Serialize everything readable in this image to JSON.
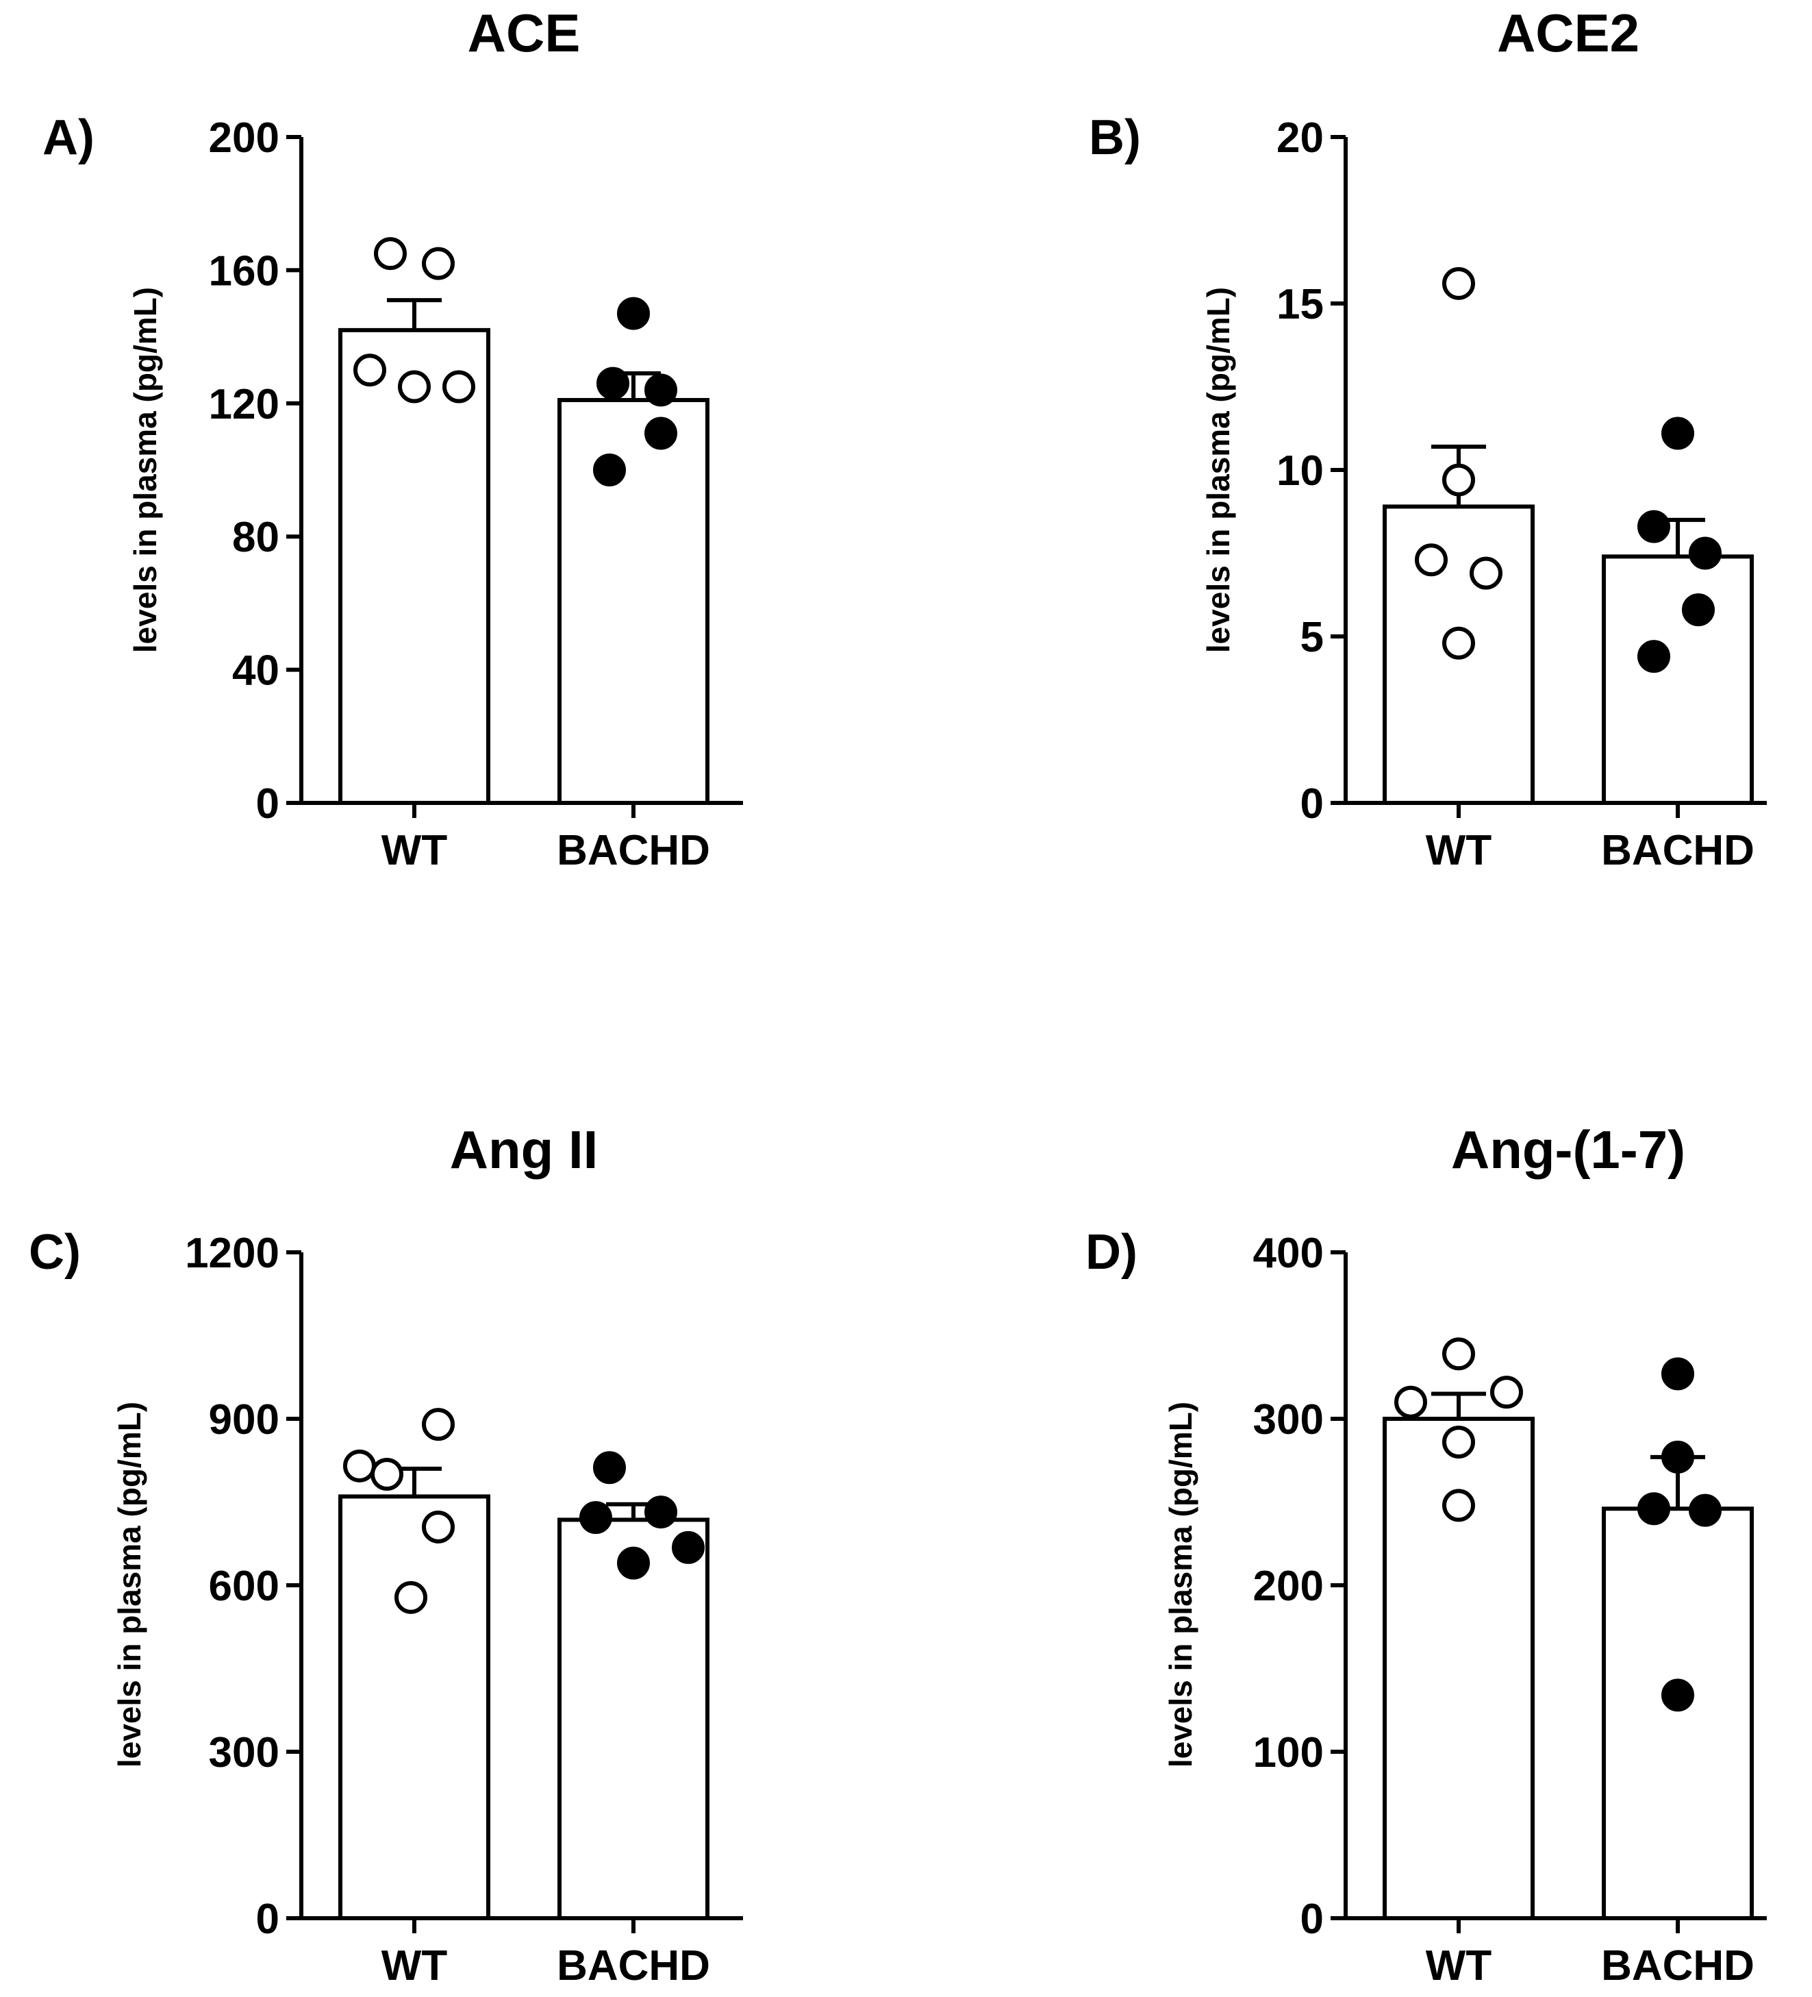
{
  "figure": {
    "panels_count": 4
  },
  "chart_data": [
    {
      "type": "bar",
      "panel_label": "A)",
      "title": "ACE",
      "ylabel": "levels in plasma (pg/mL)",
      "xlabel": "",
      "ylim": [
        0,
        200
      ],
      "yticks": [
        0,
        40,
        80,
        120,
        160,
        200
      ],
      "categories": [
        "WT",
        "BACHD"
      ],
      "values": [
        142,
        121
      ],
      "sem": [
        9,
        8
      ],
      "points": [
        [
          165,
          162,
          130,
          125,
          125
        ],
        [
          147,
          126,
          124,
          111,
          100
        ]
      ],
      "marker_fill": [
        "open",
        "filled"
      ],
      "bar_color": "#ffffff",
      "line_color": "#000000"
    },
    {
      "type": "bar",
      "panel_label": "B)",
      "title": "ACE2",
      "ylabel": "levels in plasma (pg/mL)",
      "xlabel": "",
      "ylim": [
        0,
        20
      ],
      "yticks": [
        0,
        5,
        10,
        15,
        20
      ],
      "categories": [
        "WT",
        "BACHD"
      ],
      "values": [
        8.9,
        7.4
      ],
      "sem": [
        1.8,
        1.1
      ],
      "points": [
        [
          15.6,
          9.7,
          7.3,
          6.9,
          4.8
        ],
        [
          11.1,
          8.3,
          7.5,
          5.8,
          4.4
        ]
      ],
      "marker_fill": [
        "open",
        "filled"
      ],
      "bar_color": "#ffffff",
      "line_color": "#000000"
    },
    {
      "type": "bar",
      "panel_label": "C)",
      "title": "Ang II",
      "ylabel": "levels in plasma (pg/mL)",
      "xlabel": "",
      "ylim": [
        0,
        1200
      ],
      "yticks": [
        0,
        300,
        600,
        900,
        1200
      ],
      "categories": [
        "WT",
        "BACHD"
      ],
      "values": [
        760,
        718
      ],
      "sem": [
        50,
        28
      ],
      "points": [
        [
          890,
          815,
          800,
          705,
          578
        ],
        [
          812,
          722,
          732,
          668,
          640
        ]
      ],
      "marker_fill": [
        "open",
        "filled"
      ],
      "bar_color": "#ffffff",
      "line_color": "#000000"
    },
    {
      "type": "bar",
      "panel_label": "D)",
      "title": "Ang-(1-7)",
      "ylabel": "levels in plasma (pg/mL)",
      "xlabel": "",
      "ylim": [
        0,
        400
      ],
      "yticks": [
        0,
        100,
        200,
        300,
        400
      ],
      "categories": [
        "WT",
        "BACHD"
      ],
      "values": [
        300,
        246
      ],
      "sem": [
        15,
        31
      ],
      "points": [
        [
          339,
          310,
          316,
          286,
          248
        ],
        [
          327,
          277,
          246,
          245,
          134
        ]
      ],
      "marker_fill": [
        "open",
        "filled"
      ],
      "bar_color": "#ffffff",
      "line_color": "#000000"
    }
  ]
}
